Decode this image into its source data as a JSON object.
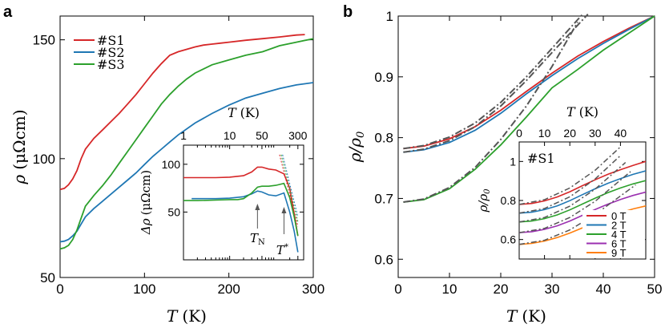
{
  "chart_data": [
    {
      "panel_label": "a",
      "type": "line",
      "xlabel_italic": "T",
      "xlabel_unit": "(K)",
      "ylabel_symbol": "ρ",
      "ylabel_unit": "(μΩcm)",
      "xlim": [
        0,
        300
      ],
      "ylim": [
        50,
        160
      ],
      "xticks": [
        0,
        100,
        200,
        300
      ],
      "yticks": [
        50,
        100,
        150
      ],
      "legend_position": "top-left",
      "series": [
        {
          "name": "#S1",
          "color": "#d62728",
          "x": [
            0,
            5,
            10,
            15,
            20,
            25,
            30,
            40,
            50,
            60,
            70,
            80,
            90,
            100,
            110,
            120,
            130,
            140,
            150,
            160,
            170,
            180,
            190,
            200,
            220,
            240,
            260,
            280,
            290
          ],
          "y": [
            87,
            87.5,
            89,
            91.5,
            95,
            100,
            104,
            108.5,
            112,
            115.5,
            119,
            123,
            127,
            131.5,
            136,
            140,
            143.5,
            145,
            146,
            147,
            147.8,
            148.2,
            148.6,
            149,
            149.8,
            150.5,
            151.2,
            152,
            152.2
          ]
        },
        {
          "name": "#S2",
          "color": "#1f77b4",
          "x": [
            0,
            5,
            10,
            15,
            20,
            25,
            30,
            40,
            50,
            60,
            70,
            80,
            90,
            100,
            110,
            120,
            130,
            140,
            160,
            180,
            200,
            220,
            240,
            260,
            280,
            300
          ],
          "y": [
            65,
            65.3,
            66,
            67.5,
            69.5,
            72.5,
            75.5,
            79,
            82,
            85,
            88,
            91,
            94,
            97.5,
            101,
            104,
            107,
            110,
            115,
            119,
            122.5,
            125.5,
            127.5,
            129.5,
            131,
            132
          ]
        },
        {
          "name": "#S3",
          "color": "#2ca02c",
          "x": [
            0,
            5,
            10,
            15,
            20,
            25,
            30,
            40,
            50,
            60,
            70,
            80,
            90,
            100,
            110,
            120,
            130,
            140,
            150,
            160,
            180,
            200,
            220,
            240,
            260,
            280,
            300
          ],
          "y": [
            62,
            62.5,
            63.5,
            66,
            70,
            75,
            80,
            84.5,
            88.5,
            93,
            98,
            103,
            108,
            113,
            118,
            123,
            127,
            130.5,
            133.5,
            136,
            139.5,
            141.5,
            143.5,
            145,
            147.5,
            149,
            150.5
          ]
        }
      ],
      "inset": {
        "type": "line",
        "xscale": "log",
        "xlabel_italic": "T",
        "xlabel_unit": "(K)",
        "ylabel_symbol": "Δρ",
        "ylabel_unit": "(μΩcm)",
        "xlim": [
          1,
          400
        ],
        "ylim": [
          0,
          120
        ],
        "xtick_labels": [
          "1",
          "10",
          "50",
          "300"
        ],
        "xtick_values": [
          1,
          10,
          50,
          300
        ],
        "yticks": [
          50,
          100
        ],
        "annotations": [
          {
            "label": "T",
            "subscript": "N",
            "x": 40
          },
          {
            "label": "T",
            "superscript": "*",
            "x": 150
          }
        ],
        "series": [
          {
            "name": "#S1",
            "color": "#d62728",
            "x": [
              1,
              2,
              5,
              10,
              20,
              30,
              40,
              50,
              70,
              100,
              150,
              200,
              250,
              300
            ],
            "y": [
              86,
              86,
              86,
              86.5,
              88,
              92,
              97,
              97,
              95,
              94,
              90,
              75,
              48,
              25
            ]
          },
          {
            "name": "#S2",
            "color": "#1f77b4",
            "x": [
              1.5,
              3,
              5,
              10,
              20,
              30,
              40,
              50,
              70,
              100,
              150,
              200,
              250,
              300
            ],
            "y": [
              64,
              64,
              64,
              64.5,
              66,
              69,
              72,
              71,
              68,
              67,
              70,
              50,
              30,
              8
            ]
          },
          {
            "name": "#S3",
            "color": "#2ca02c",
            "x": [
              1,
              2,
              5,
              10,
              15,
              20,
              30,
              40,
              50,
              70,
              100,
              150,
              200,
              250,
              300
            ],
            "y": [
              62,
              62,
              62.5,
              63,
              63,
              64,
              70,
              76,
              77,
              77,
              78,
              80,
              65,
              45,
              25
            ]
          }
        ],
        "dashed_fits": [
          {
            "color": "#d62728",
            "x": [
              120,
              300
            ],
            "y": [
              110,
              35
            ]
          },
          {
            "color": "#2ca02c",
            "x": [
              130,
              300
            ],
            "y": [
              110,
              40
            ]
          },
          {
            "color": "#1f77b4",
            "x": [
              140,
              300
            ],
            "y": [
              110,
              45
            ]
          }
        ]
      }
    },
    {
      "panel_label": "b",
      "type": "line",
      "xlabel_italic": "T",
      "xlabel_unit": "(K)",
      "ylabel_text": "ρ/ρ",
      "ylabel_subscript": "0",
      "xlim": [
        0,
        50
      ],
      "ylim": [
        0.57,
        1.0
      ],
      "xticks": [
        0,
        10,
        20,
        30,
        40,
        50
      ],
      "yticks": [
        0.6,
        0.7,
        0.8,
        0.9,
        1
      ],
      "series": [
        {
          "name": "#S1",
          "color": "#d62728",
          "x": [
            1,
            5,
            10,
            15,
            20,
            25,
            30,
            35,
            40,
            45,
            50
          ],
          "y": [
            0.782,
            0.786,
            0.798,
            0.818,
            0.845,
            0.876,
            0.906,
            0.934,
            0.958,
            0.98,
            1.0
          ]
        },
        {
          "name": "#S2",
          "color": "#1f77b4",
          "x": [
            1,
            5,
            10,
            15,
            20,
            25,
            30,
            35,
            40,
            45,
            50
          ],
          "y": [
            0.776,
            0.78,
            0.792,
            0.812,
            0.84,
            0.872,
            0.902,
            0.93,
            0.955,
            0.978,
            1.0
          ]
        },
        {
          "name": "#S3",
          "color": "#2ca02c",
          "x": [
            1,
            5,
            10,
            15,
            20,
            25,
            30,
            35,
            40,
            45,
            50
          ],
          "y": [
            0.694,
            0.698,
            0.716,
            0.748,
            0.788,
            0.834,
            0.882,
            0.912,
            0.944,
            0.972,
            1.0
          ]
        }
      ],
      "fits": [
        {
          "color": "#555555",
          "style": "dashdot",
          "x": [
            1,
            5,
            10,
            15,
            20,
            25,
            30,
            35,
            36
          ],
          "y": [
            0.782,
            0.787,
            0.801,
            0.824,
            0.858,
            0.9,
            0.947,
            0.994,
            1.003
          ]
        },
        {
          "color": "#555555",
          "style": "dashdot",
          "x": [
            1,
            5,
            10,
            15,
            20,
            25,
            30,
            35,
            37
          ],
          "y": [
            0.776,
            0.781,
            0.795,
            0.818,
            0.852,
            0.894,
            0.94,
            0.985,
            1.003
          ]
        },
        {
          "color": "#555555",
          "style": "dashdot",
          "x": [
            1,
            5,
            10,
            15,
            20,
            25,
            30,
            35
          ],
          "y": [
            0.694,
            0.699,
            0.718,
            0.751,
            0.797,
            0.852,
            0.917,
            0.99
          ]
        }
      ],
      "inset": {
        "type": "line",
        "title": "#S1",
        "xlabel_italic": "T",
        "xlabel_unit": "(K)",
        "ylabel_text": "ρ/ρ",
        "ylabel_subscript": "0",
        "xlim": [
          0,
          50
        ],
        "ylim": [
          0.5,
          1.1
        ],
        "xticks": [
          0,
          10,
          20,
          30,
          40
        ],
        "yticks": [
          0.6,
          0.8,
          1
        ],
        "legend_position": "bottom-right",
        "series": [
          {
            "name": "0 T",
            "color": "#d62728",
            "x": [
              0,
              5,
              10,
              15,
              20,
              25,
              30,
              35,
              40,
              45,
              50
            ],
            "y": [
              0.78,
              0.785,
              0.798,
              0.818,
              0.845,
              0.876,
              0.906,
              0.934,
              0.958,
              0.98,
              1.0
            ]
          },
          {
            "name": "2 T",
            "color": "#1f77b4",
            "x": [
              0,
              5,
              10,
              15,
              20,
              25,
              30,
              35,
              40,
              45,
              50
            ],
            "y": [
              0.735,
              0.74,
              0.753,
              0.772,
              0.799,
              0.83,
              0.86,
              0.888,
              0.912,
              0.934,
              0.952
            ]
          },
          {
            "name": "4 T",
            "color": "#2ca02c",
            "x": [
              0,
              5,
              10,
              15,
              20,
              25,
              30,
              35,
              40,
              45,
              50
            ],
            "y": [
              0.69,
              0.695,
              0.707,
              0.726,
              0.752,
              0.782,
              0.812,
              0.84,
              0.864,
              0.885,
              0.902
            ]
          },
          {
            "name": "6 T",
            "color": "#9b30b0",
            "x": [
              0,
              5,
              10,
              15,
              20,
              25,
              30,
              35,
              40,
              45,
              50
            ],
            "y": [
              0.635,
              0.64,
              0.652,
              0.67,
              0.695,
              0.724,
              0.754,
              0.781,
              0.805,
              0.826,
              0.843
            ]
          },
          {
            "name": "9 T",
            "color": "#ff7f0e",
            "x": [
              0,
              5,
              10,
              15,
              20,
              25,
              30,
              35,
              40,
              45,
              50
            ],
            "y": [
              0.575,
              0.58,
              0.592,
              0.61,
              0.633,
              0.66,
              0.688,
              0.714,
              0.737,
              0.757,
              0.772
            ]
          }
        ],
        "fits": [
          {
            "color": "#555555",
            "x": [
              0,
              10,
              20,
              30,
              40
            ],
            "y": [
              0.78,
              0.804,
              0.864,
              0.955,
              1.075
            ]
          },
          {
            "color": "#555555",
            "x": [
              0,
              10,
              20,
              30,
              40
            ],
            "y": [
              0.735,
              0.759,
              0.819,
              0.91,
              1.03
            ]
          },
          {
            "color": "#555555",
            "x": [
              0,
              10,
              20,
              30,
              42
            ],
            "y": [
              0.69,
              0.713,
              0.771,
              0.858,
              0.995
            ]
          },
          {
            "color": "#555555",
            "x": [
              0,
              10,
              20,
              30,
              44
            ],
            "y": [
              0.635,
              0.657,
              0.713,
              0.796,
              0.948
            ]
          },
          {
            "color": "#555555",
            "x": [
              0,
              10,
              20,
              30,
              46
            ],
            "y": [
              0.575,
              0.596,
              0.649,
              0.728,
              0.88
            ]
          }
        ]
      }
    }
  ]
}
